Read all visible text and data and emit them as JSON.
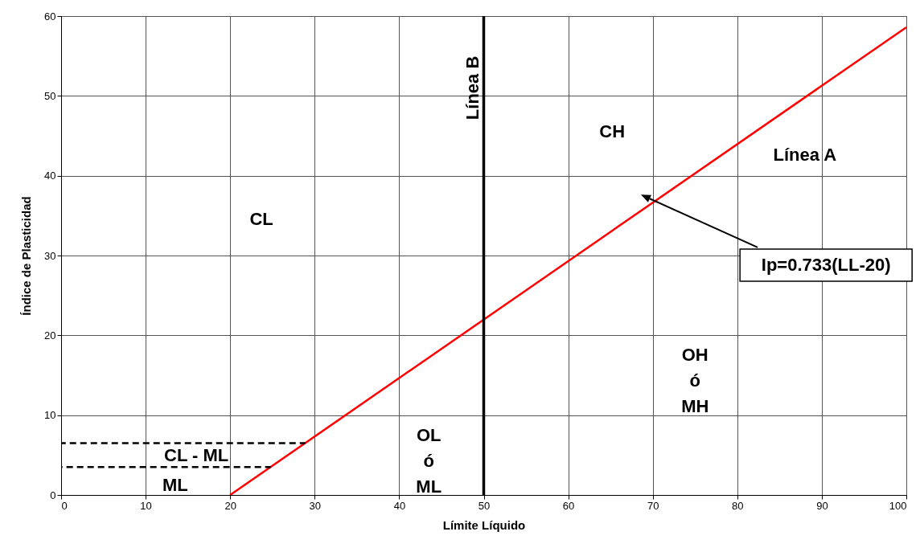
{
  "chart_data": {
    "type": "line",
    "xlabel": "Límite Líquido",
    "ylabel": "Índice de Plasticidad",
    "xlim": [
      0,
      100
    ],
    "ylim": [
      0,
      60
    ],
    "xticks": [
      0,
      10,
      20,
      30,
      40,
      50,
      60,
      70,
      80,
      90,
      100
    ],
    "yticks": [
      0,
      10,
      20,
      30,
      40,
      50,
      60
    ],
    "grid": true,
    "series": [
      {
        "color": "#ff0000",
        "x": [
          20,
          100
        ],
        "values": [
          0,
          58.6
        ],
        "line_style": "solid"
      },
      {
        "color": "#000000",
        "x": [
          0,
          28.9
        ],
        "values": [
          6.5,
          6.5
        ],
        "line_style": "dashed"
      },
      {
        "color": "#000000",
        "x": [
          0,
          24.8
        ],
        "values": [
          3.5,
          3.5
        ],
        "line_style": "dashed"
      }
    ],
    "ref_lines": [
      {
        "axis": "x",
        "value": 50,
        "label": "Línea B",
        "color": "#000000"
      }
    ],
    "annotations": [
      "CL",
      "CH",
      "Línea A",
      "CL - ML",
      "ML",
      "OL\nó\nML",
      "OH\nó\nMH",
      "Ip=0.733(LL-20)"
    ]
  }
}
